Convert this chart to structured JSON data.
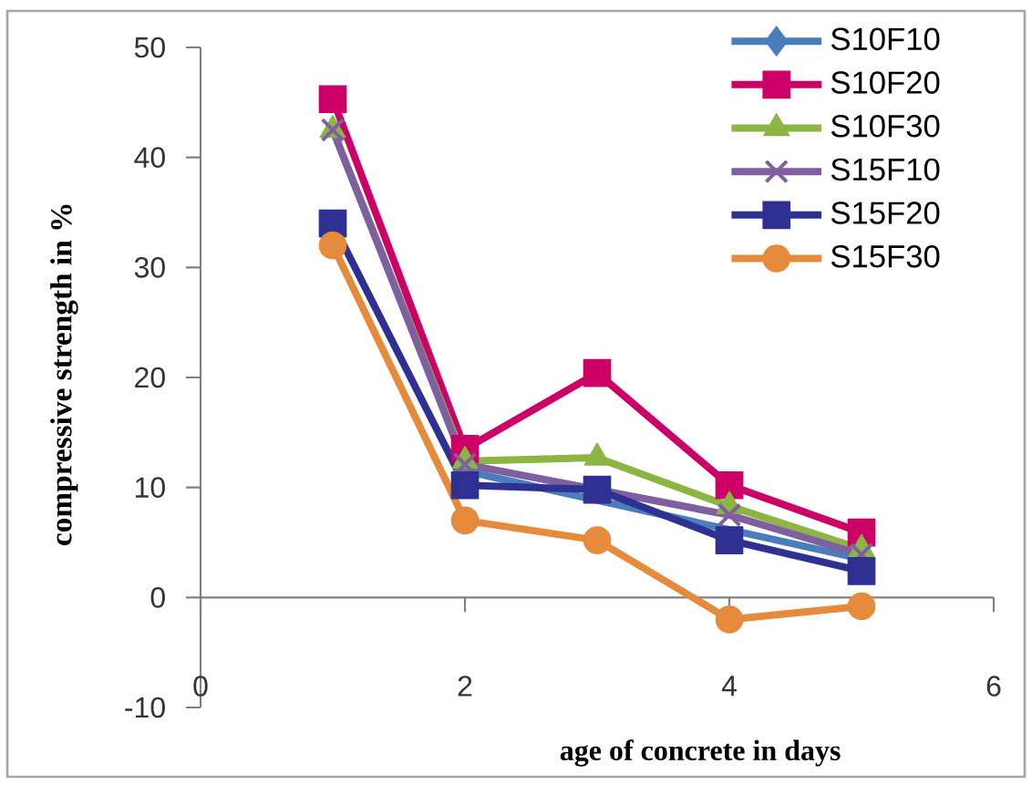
{
  "chart_data": {
    "type": "line",
    "xlabel": "age of concrete in days",
    "ylabel": "compressive strength in %",
    "x": [
      1,
      2,
      3,
      4,
      5
    ],
    "xlim": [
      0,
      6
    ],
    "xticks": [
      0,
      2,
      4,
      6
    ],
    "ylim": [
      -10,
      50
    ],
    "yticks": [
      -10,
      0,
      10,
      20,
      30,
      40,
      50
    ],
    "legend": "top right",
    "line_style": "solid",
    "series": [
      {
        "name": "S10F10",
        "color": "#4a7ebb",
        "marker": "diamond",
        "values": [
          null,
          11.5,
          null,
          null,
          3.5
        ]
      },
      {
        "name": "S10F20",
        "color": "#cc0066",
        "marker": "square",
        "values": [
          45.3,
          13.5,
          20.4,
          10.2,
          5.9
        ]
      },
      {
        "name": "S10F30",
        "color": "#8cb543",
        "marker": "triangle",
        "values": [
          42.5,
          12.4,
          12.7,
          8.3,
          4.4
        ]
      },
      {
        "name": "S15F10",
        "color": "#7f5fa0",
        "marker": "cross",
        "values": [
          42.5,
          12.1,
          null,
          7.5,
          3.9
        ]
      },
      {
        "name": "S15F20",
        "color": "#2e3192",
        "marker": "square",
        "values": [
          34,
          10.2,
          9.8,
          5.2,
          2.4
        ]
      },
      {
        "name": "S15F30",
        "color": "#e68a3c",
        "marker": "circle",
        "values": [
          32,
          7,
          5.2,
          -2,
          -0.8
        ]
      }
    ]
  }
}
